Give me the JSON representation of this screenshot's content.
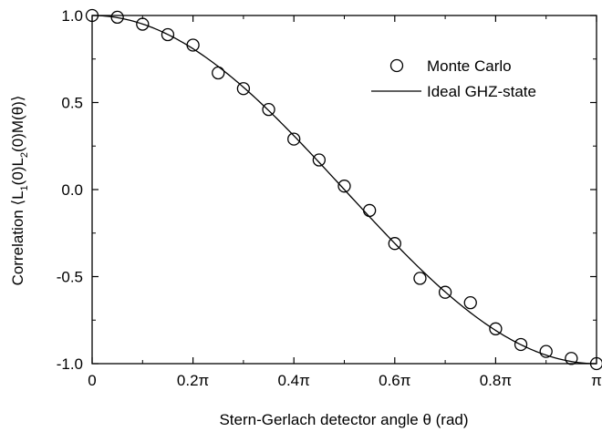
{
  "chart_data": {
    "type": "scatter",
    "title": "",
    "xlabel": "Stern-Gerlach detector angle θ  (rad)",
    "ylabel": {
      "prefix": "Correlation ⟨L",
      "sub1": "1",
      "mid1": "(0)L",
      "sub2": "2",
      "suffix": "(0)M(θ)⟩"
    },
    "xlim": [
      0,
      1
    ],
    "ylim": [
      -1.0,
      1.0
    ],
    "x_unit": "π rad",
    "xticks": [
      {
        "value": 0,
        "label": "0"
      },
      {
        "value": 0.2,
        "label": "0.2π"
      },
      {
        "value": 0.4,
        "label": "0.4π"
      },
      {
        "value": 0.6,
        "label": "0.6π"
      },
      {
        "value": 0.8,
        "label": "0.8π"
      },
      {
        "value": 1.0,
        "label": "π"
      }
    ],
    "yticks": [
      {
        "value": 1.0,
        "label": "1.0"
      },
      {
        "value": 0.5,
        "label": "0.5"
      },
      {
        "value": 0.0,
        "label": "0.0"
      },
      {
        "value": -0.5,
        "label": "-0.5"
      },
      {
        "value": -1.0,
        "label": "-1.0"
      }
    ],
    "series": [
      {
        "name": "Monte Carlo",
        "kind": "markers",
        "marker": "open-circle",
        "x": [
          0,
          0.05,
          0.1,
          0.15,
          0.2,
          0.25,
          0.3,
          0.35,
          0.4,
          0.45,
          0.5,
          0.55,
          0.6,
          0.65,
          0.7,
          0.75,
          0.8,
          0.85,
          0.9,
          0.95,
          1.0
        ],
        "y": [
          1.0,
          0.99,
          0.95,
          0.89,
          0.83,
          0.67,
          0.58,
          0.46,
          0.29,
          0.17,
          0.02,
          -0.12,
          -0.31,
          -0.51,
          -0.59,
          -0.65,
          -0.8,
          -0.89,
          -0.93,
          -0.97,
          -1.0
        ]
      },
      {
        "name": "Ideal GHZ-state",
        "kind": "line",
        "function": "cos(theta)"
      }
    ],
    "legend": {
      "position": "top-right"
    },
    "grid": false
  }
}
